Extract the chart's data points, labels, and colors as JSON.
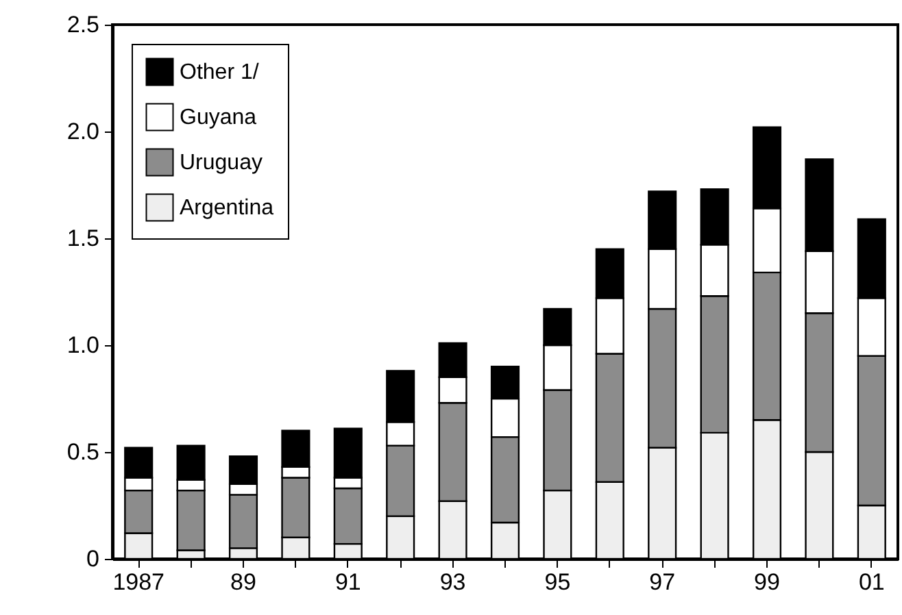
{
  "chart_data": {
    "type": "bar",
    "stacked": true,
    "categories": [
      "1987",
      null,
      "89",
      null,
      "91",
      null,
      "93",
      null,
      "95",
      null,
      "97",
      null,
      "99",
      null,
      "01"
    ],
    "series": [
      {
        "name": "Argentina",
        "color": "#eeeeee",
        "values": [
          0.12,
          0.04,
          0.05,
          0.1,
          0.07,
          0.2,
          0.27,
          0.17,
          0.32,
          0.36,
          0.52,
          0.59,
          0.65,
          0.5,
          0.25
        ]
      },
      {
        "name": "Uruguay",
        "color": "#8c8c8c",
        "values": [
          0.2,
          0.28,
          0.25,
          0.28,
          0.26,
          0.33,
          0.46,
          0.4,
          0.47,
          0.6,
          0.65,
          0.64,
          0.69,
          0.65,
          0.7
        ]
      },
      {
        "name": "Guyana",
        "color": "#ffffff",
        "values": [
          0.06,
          0.05,
          0.05,
          0.05,
          0.05,
          0.11,
          0.12,
          0.18,
          0.21,
          0.26,
          0.28,
          0.24,
          0.3,
          0.29,
          0.27
        ]
      },
      {
        "name": "Other 1/",
        "color": "#000000",
        "values": [
          0.14,
          0.16,
          0.13,
          0.17,
          0.23,
          0.24,
          0.16,
          0.15,
          0.17,
          0.23,
          0.27,
          0.26,
          0.38,
          0.43,
          0.37
        ]
      }
    ],
    "ylim": [
      0,
      2.5
    ],
    "yticks": [
      0,
      0.5,
      {
        "value": 1,
        "label": "1.0"
      },
      {
        "value": 1.5,
        "label": "1.5"
      },
      {
        "value": 2,
        "label": "2.0"
      },
      {
        "value": 2.5,
        "label": "2.5"
      }
    ],
    "grid": false,
    "legend": "top left"
  }
}
